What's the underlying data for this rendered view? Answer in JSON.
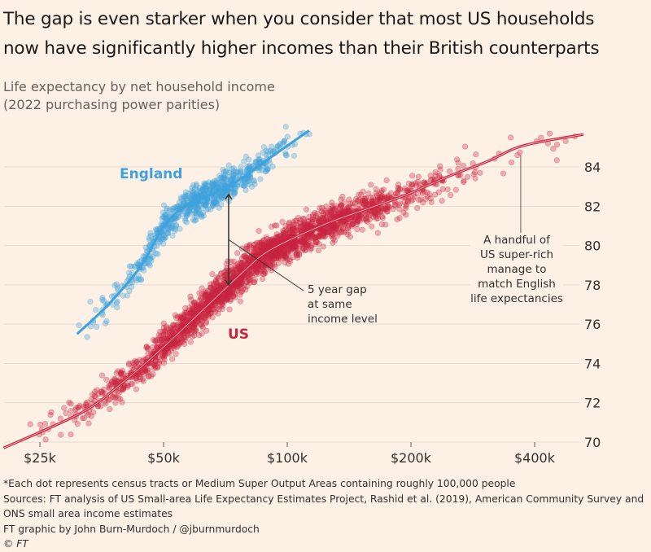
{
  "title_lines": [
    "The gap is even starker when you consider that most US households",
    "now have significantly higher incomes than their British counterparts"
  ],
  "subtitle_lines": [
    "Life expectancy by net household income",
    "(2022 purchasing power parities)"
  ],
  "chart_data": {
    "type": "scatter",
    "x_scale": "log",
    "xlim": [
      20000,
      540000
    ],
    "ylim": [
      70,
      85.9
    ],
    "x_ticks": [
      25000,
      50000,
      100000,
      200000,
      400000
    ],
    "x_tick_labels": [
      "$25k",
      "$50k",
      "$100k",
      "$200k",
      "$400k"
    ],
    "y_ticks": [
      70,
      72,
      74,
      76,
      78,
      80,
      82,
      84
    ],
    "y_tick_labels": [
      "70",
      "72",
      "74",
      "76",
      "78",
      "80",
      "82",
      "84"
    ],
    "y_axis_side": "right",
    "grid": "horizontal",
    "series": [
      {
        "name": "England",
        "color": "#3fa2dc",
        "trend_line": {
          "x": [
            30800,
            36700,
            44000,
            49800,
            56300,
            67600,
            78500,
            91300,
            113000
          ],
          "y": [
            75.5,
            77.0,
            78.95,
            80.9,
            82.0,
            82.75,
            83.5,
            84.5,
            85.85
          ]
        },
        "points_spread_sd": 0.5,
        "points_x_range": [
          30800,
          115000
        ]
      },
      {
        "name": "US",
        "color": "#c9243f",
        "trend_line": {
          "x": [
            20400,
            31600,
            39600,
            49800,
            62500,
            78500,
            91300,
            123900,
            155600,
            195500,
            245600,
            308500,
            358600,
            418700,
            526000
          ],
          "y": [
            69.7,
            71.5,
            73.0,
            74.8,
            76.75,
            78.7,
            79.8,
            81.1,
            81.85,
            82.6,
            83.5,
            84.3,
            84.95,
            85.3,
            85.65
          ]
        },
        "points_spread_sd": 0.6,
        "points_x_range": [
          23000,
          530000
        ]
      }
    ],
    "annotations": [
      {
        "text_lines": [
          "5 year gap",
          "at same",
          "income level"
        ],
        "arrow_x": 72000,
        "arrow_y": [
          82.6,
          78.0
        ]
      },
      {
        "text_lines": [
          "A handful of",
          "US super-rich",
          "manage to",
          "match English",
          "life expectancies"
        ],
        "pointer_x": 370000,
        "pointer_y": 84.6
      }
    ]
  },
  "footnotes": [
    "*Each dot represents census tracts or Medium Super Output Areas containing roughly 100,000 people",
    "Sources: FT analysis of US Small-area Life Expectancy Estimates Project, Rashid et al. (2019), American Community Survey and",
    "ONS small area income estimates",
    "FT graphic by John Burn-Murdoch / @jburnmurdoch",
    "© FT"
  ]
}
